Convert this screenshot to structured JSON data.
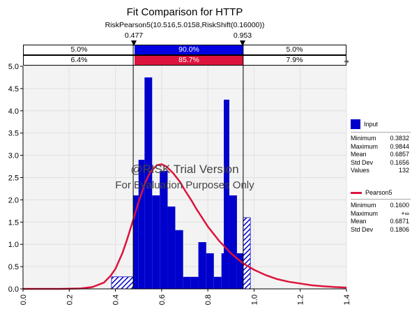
{
  "header": {
    "title": "Fit Comparison for HTTP",
    "subtitle": "RiskPearson5(10.516,5.0158,RiskShift(0.16000))",
    "left_marker": "0.477",
    "right_marker": "0.953"
  },
  "bands": {
    "input": {
      "left": "5.0%",
      "middle": "90.0%",
      "right": "5.0%"
    },
    "fit": {
      "left": "6.4%",
      "middle": "85.7%",
      "right": "7.9%"
    }
  },
  "watermark": {
    "line1": "@RISK Trial Version",
    "line2": "For Evaluation Purposes Only"
  },
  "legend": {
    "input": {
      "name": "Input",
      "stats": [
        {
          "label": "Minimum",
          "value": "0.3832"
        },
        {
          "label": "Maximum",
          "value": "0.9844"
        },
        {
          "label": "Mean",
          "value": "0.6857"
        },
        {
          "label": "Std Dev",
          "value": "0.1656"
        },
        {
          "label": "Values",
          "value": "132"
        }
      ]
    },
    "fit": {
      "name": "Pearson5",
      "stats": [
        {
          "label": "Minimum",
          "value": "0.1600"
        },
        {
          "label": "Maximum",
          "value": "+∞"
        },
        {
          "label": "Mean",
          "value": "0.6871"
        },
        {
          "label": "Std Dev",
          "value": "0.1806"
        }
      ]
    }
  },
  "colors": {
    "input": "#0000cc",
    "fit": "#dc143c",
    "band_blue": "#0000e0",
    "band_red": "#dc143c"
  },
  "chart_data": {
    "type": "bar",
    "xlim": [
      0.0,
      1.4
    ],
    "ylim": [
      0.0,
      5.0
    ],
    "x_ticks": [
      "0.0",
      "0.2",
      "0.4",
      "0.6",
      "0.8",
      "1.0",
      "1.2",
      "1.4"
    ],
    "y_ticks": [
      "0.0",
      "0.5",
      "1.0",
      "1.5",
      "2.0",
      "2.5",
      "3.0",
      "3.5",
      "4.0",
      "4.5",
      "5.0"
    ],
    "delimiters": [
      0.477,
      0.953
    ],
    "histogram": {
      "name": "Input",
      "bins": [
        {
          "x0": 0.383,
          "x1": 0.477,
          "y": 0.27
        },
        {
          "x0": 0.477,
          "x1": 0.5,
          "y": 2.1
        },
        {
          "x0": 0.5,
          "x1": 0.526,
          "y": 2.9
        },
        {
          "x0": 0.526,
          "x1": 0.559,
          "y": 4.75
        },
        {
          "x0": 0.559,
          "x1": 0.592,
          "y": 2.1
        },
        {
          "x0": 0.592,
          "x1": 0.626,
          "y": 2.65
        },
        {
          "x0": 0.626,
          "x1": 0.659,
          "y": 1.85
        },
        {
          "x0": 0.659,
          "x1": 0.693,
          "y": 1.32
        },
        {
          "x0": 0.693,
          "x1": 0.726,
          "y": 0.27
        },
        {
          "x0": 0.726,
          "x1": 0.759,
          "y": 0.27
        },
        {
          "x0": 0.759,
          "x1": 0.793,
          "y": 1.05
        },
        {
          "x0": 0.793,
          "x1": 0.826,
          "y": 0.8
        },
        {
          "x0": 0.826,
          "x1": 0.859,
          "y": 0.27
        },
        {
          "x0": 0.859,
          "x1": 0.869,
          "y": 0.8
        },
        {
          "x0": 0.869,
          "x1": 0.893,
          "y": 4.25
        },
        {
          "x0": 0.893,
          "x1": 0.926,
          "y": 2.1
        },
        {
          "x0": 0.926,
          "x1": 0.953,
          "y": 0.8
        },
        {
          "x0": 0.953,
          "x1": 0.984,
          "y": 1.6
        }
      ]
    },
    "fit_curve": {
      "name": "Pearson5",
      "x": [
        0.0,
        0.16,
        0.25,
        0.3,
        0.35,
        0.38,
        0.4,
        0.43,
        0.45,
        0.48,
        0.5,
        0.53,
        0.55,
        0.58,
        0.6,
        0.62,
        0.65,
        0.68,
        0.7,
        0.73,
        0.75,
        0.8,
        0.85,
        0.9,
        0.95,
        1.0,
        1.05,
        1.1,
        1.15,
        1.2,
        1.25,
        1.3,
        1.35,
        1.4
      ],
      "y": [
        0.0,
        0.0,
        0.01,
        0.04,
        0.14,
        0.3,
        0.45,
        0.8,
        1.1,
        1.6,
        1.95,
        2.4,
        2.62,
        2.78,
        2.8,
        2.75,
        2.6,
        2.4,
        2.22,
        1.98,
        1.8,
        1.4,
        1.07,
        0.8,
        0.58,
        0.43,
        0.31,
        0.22,
        0.16,
        0.12,
        0.08,
        0.06,
        0.04,
        0.03
      ]
    }
  }
}
